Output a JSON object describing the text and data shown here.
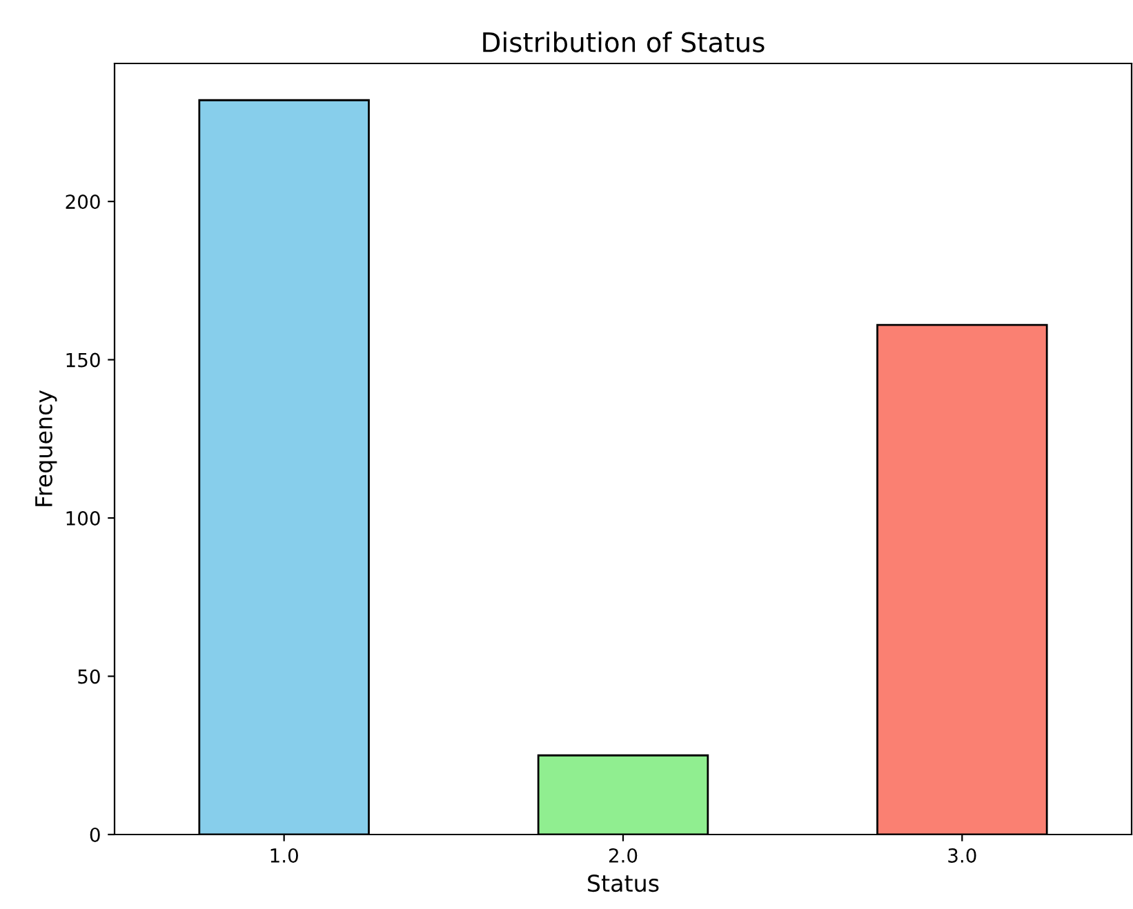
{
  "chart_data": {
    "type": "bar",
    "title": "Distribution of Status",
    "xlabel": "Status",
    "ylabel": "Frequency",
    "categories": [
      "1.0",
      "2.0",
      "3.0"
    ],
    "values": [
      232,
      25,
      161
    ],
    "colors": [
      "#87ceeb",
      "#90ee90",
      "#fa8072"
    ],
    "ylim": [
      0,
      243.6
    ],
    "yticks": [
      0,
      50,
      100,
      150,
      200
    ],
    "grid": false
  }
}
